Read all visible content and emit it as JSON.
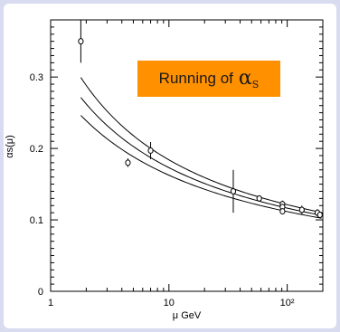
{
  "annotation": {
    "prefix": "Running of",
    "symbol": "α",
    "subscript": "S"
  },
  "chart_data": {
    "type": "scatter",
    "title": "",
    "xlabel": "μ GeV",
    "ylabel": "αs(μ)",
    "xscale": "log",
    "xlim": [
      1,
      200
    ],
    "ylim": [
      0,
      0.38
    ],
    "x_tick_labels": [
      "1",
      "10",
      "10²"
    ],
    "y_tick_labels": [
      "0",
      "0.1",
      "0.2",
      "0.3"
    ],
    "grid": false,
    "points": [
      {
        "x": 1.8,
        "y": 0.35,
        "err_low": 0.03,
        "err_high": 0.03
      },
      {
        "x": 4.5,
        "y": 0.18,
        "err_low": 0.006,
        "err_high": 0.006
      },
      {
        "x": 7.0,
        "y": 0.197,
        "err_low": 0.012,
        "err_high": 0.012
      },
      {
        "x": 35.0,
        "y": 0.14,
        "err_low": 0.03,
        "err_high": 0.03
      },
      {
        "x": 58.0,
        "y": 0.13,
        "err_low": 0.004,
        "err_high": 0.004
      },
      {
        "x": 91.2,
        "y": 0.122,
        "err_low": 0.005,
        "err_high": 0.005
      },
      {
        "x": 91.2,
        "y": 0.118,
        "err_low": 0.004,
        "err_high": 0.004
      },
      {
        "x": 91.2,
        "y": 0.112,
        "err_low": 0.004,
        "err_high": 0.004
      },
      {
        "x": 133.0,
        "y": 0.114,
        "err_low": 0.006,
        "err_high": 0.006
      },
      {
        "x": 180.0,
        "y": 0.11,
        "err_low": 0.005,
        "err_high": 0.005
      },
      {
        "x": 189.0,
        "y": 0.107,
        "err_low": 0.004,
        "err_high": 0.004
      }
    ],
    "curves": [
      {
        "alpha_mz": 0.113
      },
      {
        "alpha_mz": 0.118
      },
      {
        "alpha_mz": 0.123
      }
    ]
  }
}
